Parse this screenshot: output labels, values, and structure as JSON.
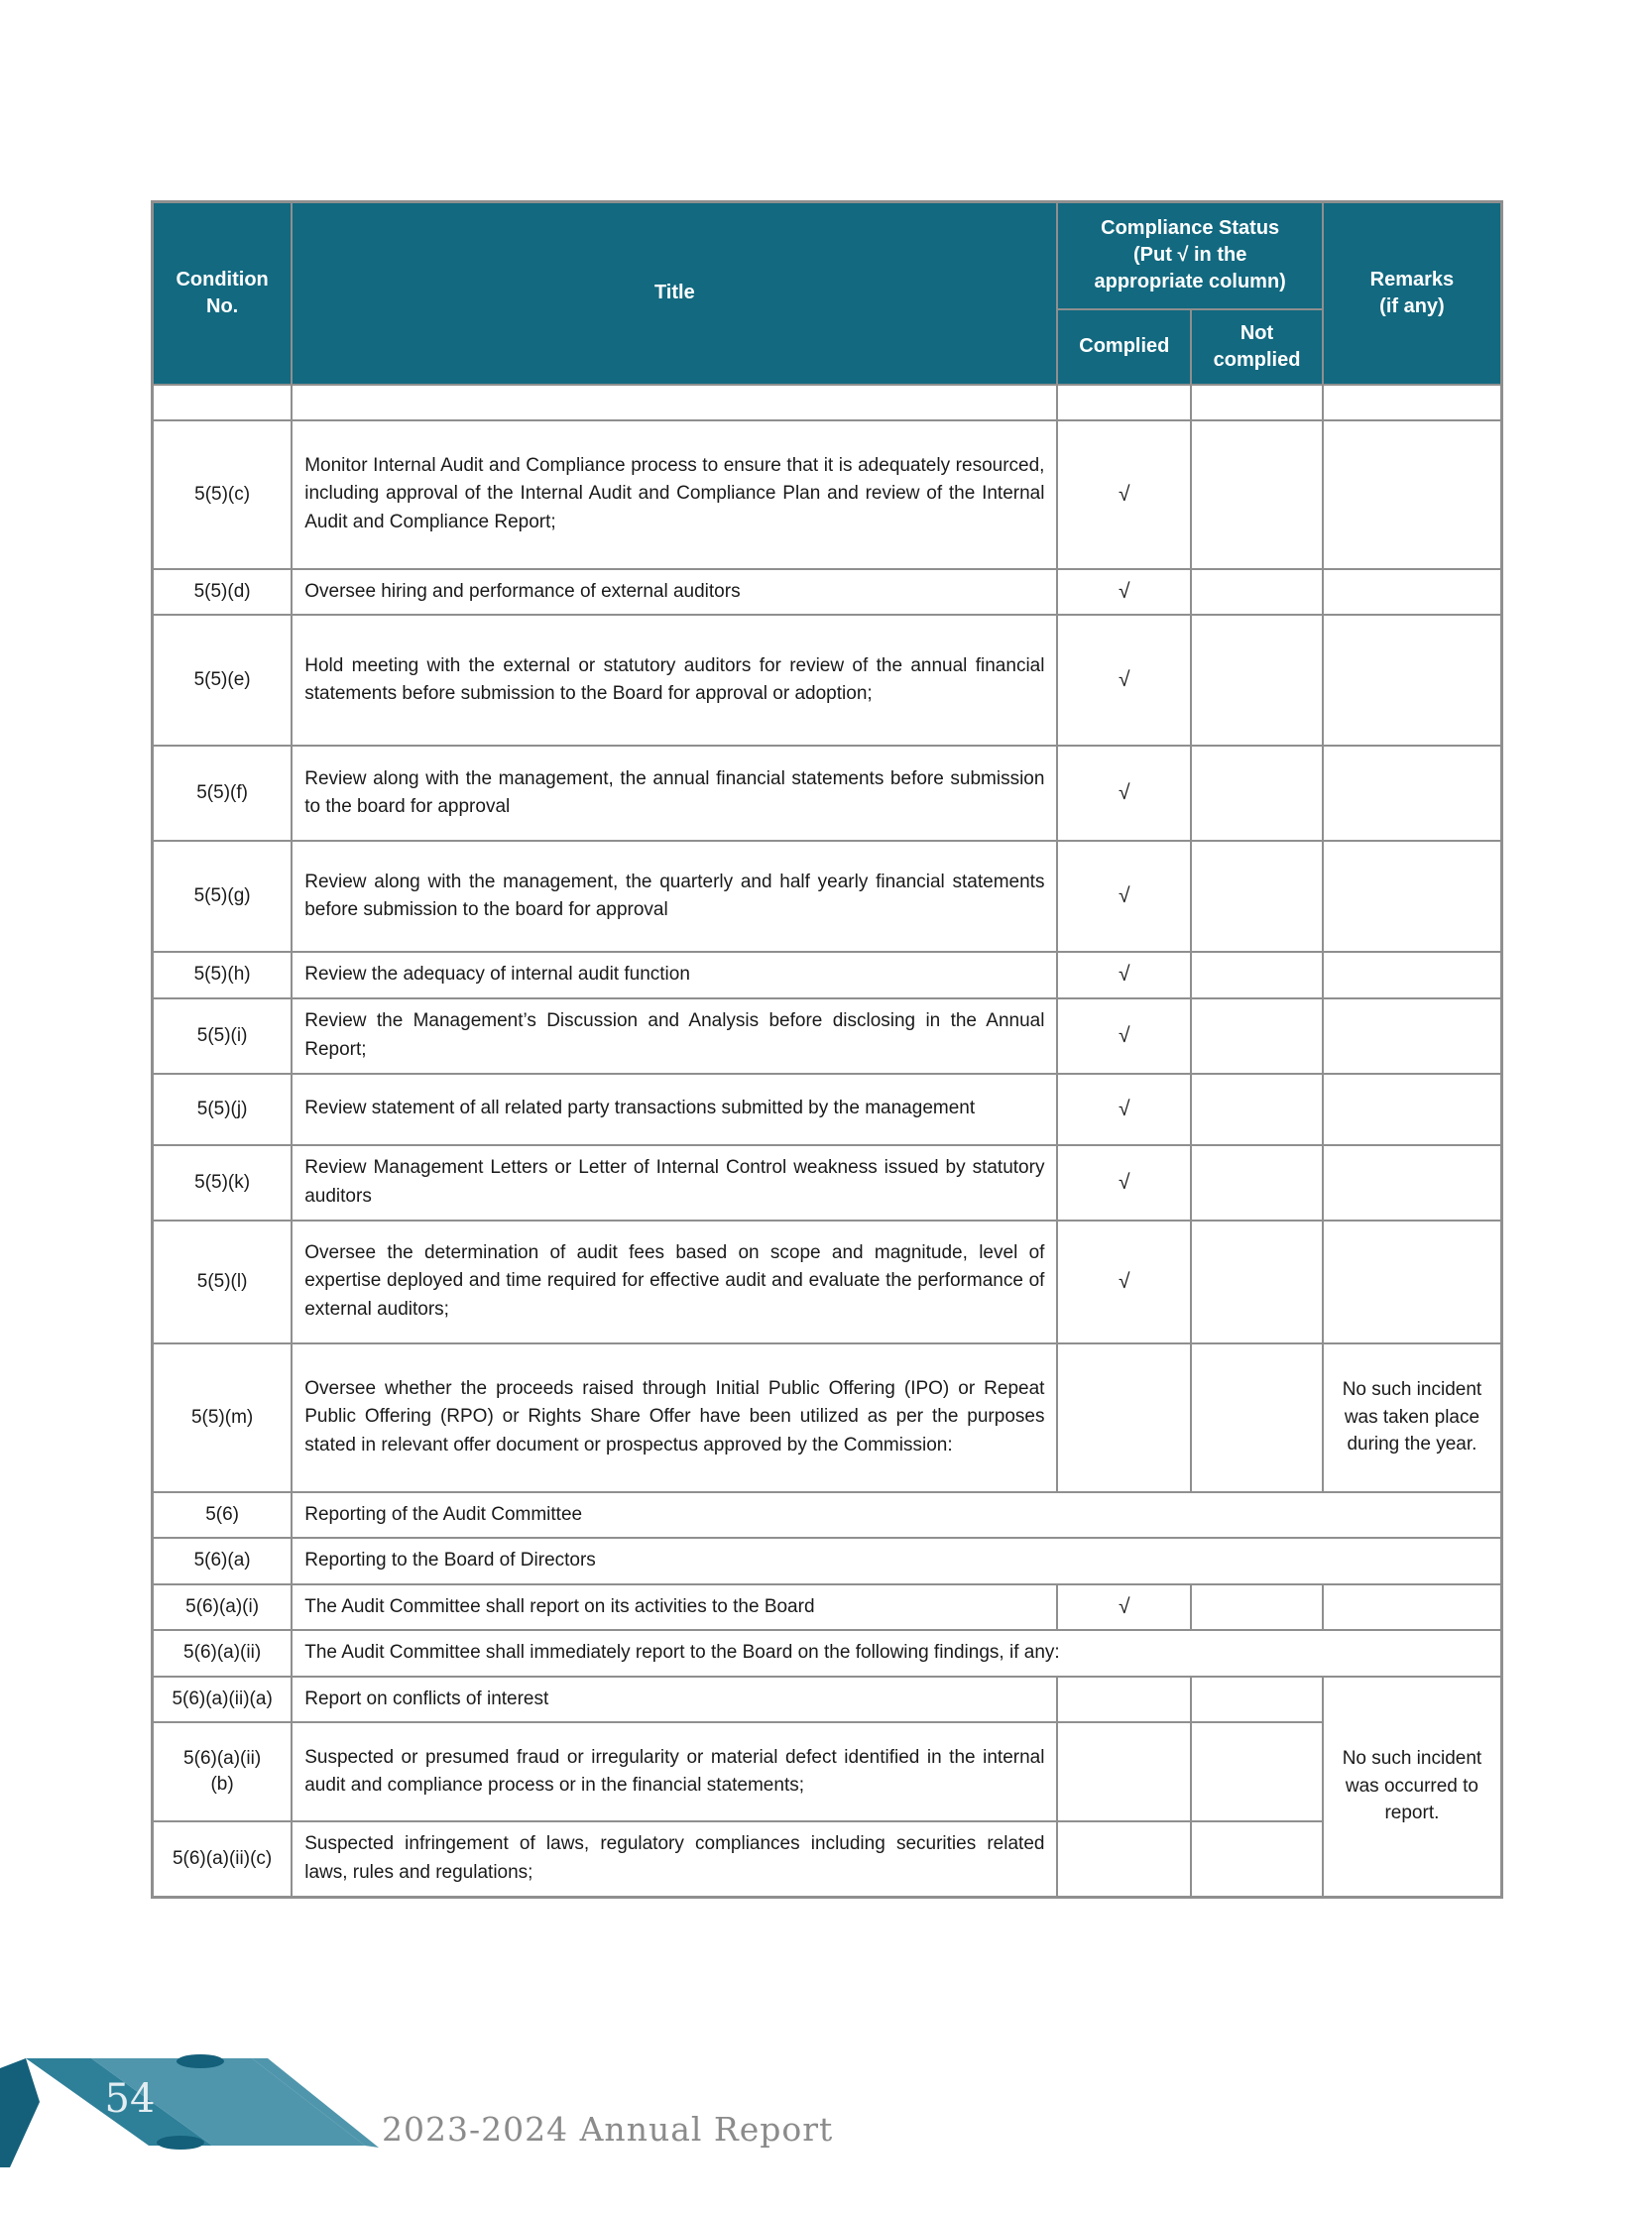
{
  "page": {
    "number": "54",
    "footer_text": "2023-2024 Annual Report"
  },
  "colors": {
    "header_bg": "#126980",
    "border_grey": "#8f8f8f",
    "ribbon_light": "#4f96ac",
    "ribbon_mid": "#2e8099",
    "ribbon_dark": "#14607a",
    "footer_text_grey": "#8b8b8b"
  },
  "table": {
    "header": {
      "condition_no": "Condition\nNo.",
      "title": "Title",
      "compliance_status": "Compliance Status\n(Put √ in the\nappropriate column)",
      "complied": "Complied",
      "not_complied": "Not\ncomplied",
      "remarks": "Remarks\n(if any)"
    },
    "checkmark": "√",
    "rows": [
      {
        "type": "empty",
        "no": "",
        "title": "",
        "complied": "",
        "not_complied": "",
        "remarks": "",
        "min_h": 36
      },
      {
        "type": "normal",
        "no": "5(5)(c)",
        "title": "Monitor Internal Audit and Compliance process to ensure that it is adequately resourced, including approval of the Internal Audit and Compliance Plan and review of the Internal Audit and Compliance Report;",
        "complied": "√",
        "not_complied": "",
        "remarks": "",
        "min_h": 150
      },
      {
        "type": "normal",
        "no": "5(5)(d)",
        "title": "Oversee hiring and performance of external auditors",
        "complied": "√",
        "not_complied": "",
        "remarks": "",
        "min_h": 44
      },
      {
        "type": "normal",
        "no": "5(5)(e)",
        "title": "Hold meeting with the external or statutory auditors for review of the annual financial statements before submission to the Board for approval or adoption;",
        "complied": "√",
        "not_complied": "",
        "remarks": "",
        "min_h": 132
      },
      {
        "type": "normal",
        "no": "5(5)(f)",
        "title": "Review along with the management, the annual financial statements before submission to the board for approval",
        "complied": "√",
        "not_complied": "",
        "remarks": "",
        "min_h": 96
      },
      {
        "type": "normal",
        "no": "5(5)(g)",
        "title": "Review along with the management, the quarterly and half yearly financial statements before submission to the board for approval",
        "complied": "√",
        "not_complied": "",
        "remarks": "",
        "min_h": 112
      },
      {
        "type": "normal",
        "no": "5(5)(h)",
        "title": "Review the adequacy of internal audit function",
        "complied": "√",
        "not_complied": "",
        "remarks": "",
        "min_h": 42
      },
      {
        "type": "normal",
        "no": "5(5)(i)",
        "title": "Review the Management’s Discussion and Analysis before disclosing in the Annual Report;",
        "complied": "√",
        "not_complied": "",
        "remarks": "",
        "min_h": 76
      },
      {
        "type": "normal",
        "no": "5(5)(j)",
        "title": "Review statement of all related party transactions submitted by the management",
        "complied": "√",
        "not_complied": "",
        "remarks": "",
        "min_h": 72
      },
      {
        "type": "normal",
        "no": "5(5)(k)",
        "title": "Review Management Letters or Letter of Internal Control weakness issued by statutory auditors",
        "complied": "√",
        "not_complied": "",
        "remarks": "",
        "min_h": 76
      },
      {
        "type": "normal",
        "no": "5(5)(l)",
        "title": "Oversee the determination of audit fees based on scope and magnitude, level of expertise deployed and time required for effective audit and evaluate the performance of external auditors;",
        "complied": "√",
        "not_complied": "",
        "remarks": "",
        "min_h": 124
      },
      {
        "type": "normal",
        "no": "5(5)(m)",
        "title": "Oversee whether the proceeds raised through Initial Public Offering (IPO) or Repeat Public Offering (RPO) or Rights Share Offer have been utilized as per the purposes stated in relevant offer document or prospectus approved by the Commission:",
        "complied": "",
        "not_complied": "",
        "remarks": "No such incident was taken place during the year.",
        "min_h": 150
      },
      {
        "type": "span",
        "no": "5(6)",
        "title": "Reporting of the Audit Committee",
        "min_h": 40
      },
      {
        "type": "span",
        "no": "5(6)(a)",
        "title": "Reporting to the Board of Directors",
        "min_h": 40
      },
      {
        "type": "normal",
        "no": "5(6)(a)(i)",
        "title": "The Audit Committee shall report on its activities to the Board",
        "complied": "√",
        "not_complied": "",
        "remarks": "",
        "min_h": 42
      },
      {
        "type": "span",
        "no": "5(6)(a)(ii)",
        "title": "The Audit Committee shall immediately report to the Board on the following findings, if any:",
        "min_h": 40
      },
      {
        "type": "normal",
        "no": "5(6)(a)(ii)(a)",
        "title": "Report on conflicts of interest",
        "complied": "",
        "not_complied": "",
        "remarks": "No such incident was occurred to report.",
        "remarks_rowspan": 3,
        "min_h": 42
      },
      {
        "type": "normal",
        "no": "5(6)(a)(ii)\n(b)",
        "title": "Suspected or presumed fraud or irregularity or material defect identified in the internal audit and compliance process or in the financial statements;",
        "complied": "",
        "not_complied": "",
        "remarks_skip": true,
        "min_h": 100
      },
      {
        "type": "normal",
        "no": "5(6)(a)(ii)(c)",
        "title": "Suspected infringement of laws, regulatory compliances including securities related laws, rules and regulations;",
        "complied": "",
        "not_complied": "",
        "remarks_skip": true,
        "min_h": 76
      }
    ]
  }
}
